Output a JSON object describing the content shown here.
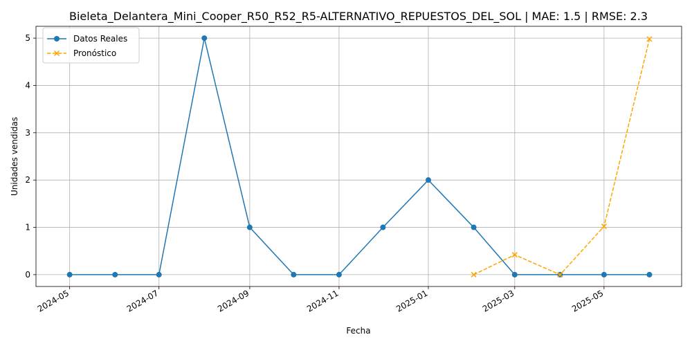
{
  "chart_data": {
    "type": "line",
    "title": "Bieleta_Delantera_Mini_Cooper_R50_R52_R5-ALTERNATIVO_REPUESTOS_DEL_SOL | MAE: 1.5 | RMSE: 2.3",
    "xlabel": "Fecha",
    "ylabel": "Unidades vendidas",
    "xlim": [
      "2024-04-08",
      "2025-06-23"
    ],
    "ylim": [
      -0.25,
      5.25
    ],
    "x_ticks": [
      "2024-05",
      "2024-07",
      "2024-09",
      "2024-11",
      "2025-01",
      "2025-03",
      "2025-05"
    ],
    "x_tick_dates": [
      "2024-05-01",
      "2024-07-01",
      "2024-09-01",
      "2024-11-01",
      "2025-01-01",
      "2025-03-01",
      "2025-05-01"
    ],
    "y_ticks": [
      0,
      1,
      2,
      3,
      4,
      5
    ],
    "grid": true,
    "legend_position": "upper-left",
    "series": [
      {
        "name": "Datos Reales",
        "color": "#1f77b4",
        "line_style": "solid",
        "marker": "circle",
        "x": [
          "2024-05-01",
          "2024-06-01",
          "2024-07-01",
          "2024-08-01",
          "2024-09-01",
          "2024-10-01",
          "2024-11-01",
          "2024-12-01",
          "2025-01-01",
          "2025-02-01",
          "2025-03-01",
          "2025-04-01",
          "2025-05-01",
          "2025-06-01"
        ],
        "values": [
          0,
          0,
          0,
          5,
          1,
          0,
          0,
          1,
          2,
          1,
          0,
          0,
          0,
          0
        ]
      },
      {
        "name": "Pronóstico",
        "color": "#ffa500",
        "line_style": "dashed",
        "marker": "x",
        "x": [
          "2025-02-01",
          "2025-03-01",
          "2025-04-01",
          "2025-05-01",
          "2025-06-01"
        ],
        "values": [
          0,
          0.42,
          0,
          1.02,
          4.98
        ]
      }
    ]
  }
}
